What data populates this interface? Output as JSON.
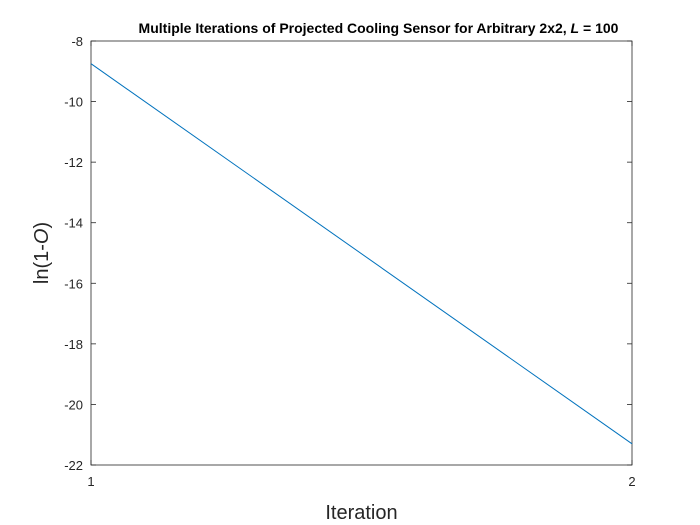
{
  "chart_data": {
    "type": "line",
    "title": "Multiple Iterations of Projected Cooling Sensor for Arbitrary 2x2, ",
    "title_italic": "L",
    "title_tail": " = 100",
    "xlabel": "Iteration",
    "ylabel_prefix": "ln(1-",
    "ylabel_italic": "O",
    "ylabel_suffix": ")",
    "xlim": [
      1,
      2
    ],
    "ylim": [
      -22,
      -8
    ],
    "xticks": [
      1,
      2
    ],
    "xtick_labels": [
      "1",
      "2"
    ],
    "yticks": [
      -22,
      -20,
      -18,
      -16,
      -14,
      -12,
      -10,
      -8
    ],
    "ytick_labels": [
      "-22",
      "-20",
      "-18",
      "-16",
      "-14",
      "-12",
      "-10",
      "-8"
    ],
    "grid": false,
    "series": [
      {
        "x": [
          1,
          2
        ],
        "y": [
          -8.75,
          -21.3
        ],
        "color": "#0072BD"
      }
    ]
  }
}
